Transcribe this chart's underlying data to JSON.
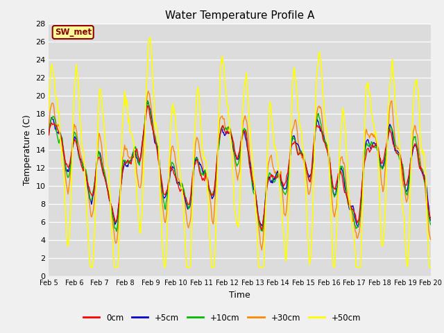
{
  "title": "Water Temperature Profile A",
  "xlabel": "Time",
  "ylabel": "Temperature (C)",
  "ylim": [
    0,
    28
  ],
  "yticks": [
    0,
    2,
    4,
    6,
    8,
    10,
    12,
    14,
    16,
    18,
    20,
    22,
    24,
    26,
    28
  ],
  "xtick_labels": [
    "Feb 5",
    "Feb 6",
    "Feb 7",
    "Feb 8",
    "Feb 9",
    "Feb 10",
    "Feb 11",
    "Feb 12",
    "Feb 13",
    "Feb 14",
    "Feb 15",
    "Feb 16",
    "Feb 17",
    "Feb 18",
    "Feb 19",
    "Feb 20"
  ],
  "legend_labels": [
    "0cm",
    "+5cm",
    "+10cm",
    "+30cm",
    "+50cm"
  ],
  "legend_colors": [
    "#ff0000",
    "#0000cc",
    "#00bb00",
    "#ff8800",
    "#ffff00"
  ],
  "line_widths": [
    1.0,
    1.0,
    1.0,
    1.0,
    1.2
  ],
  "annotation_text": "SW_met",
  "annotation_fg": "#8b0000",
  "annotation_bg": "#ffff99",
  "bg_color": "#dcdcdc",
  "grid_color": "#ffffff",
  "fig_bg": "#f0f0f0"
}
